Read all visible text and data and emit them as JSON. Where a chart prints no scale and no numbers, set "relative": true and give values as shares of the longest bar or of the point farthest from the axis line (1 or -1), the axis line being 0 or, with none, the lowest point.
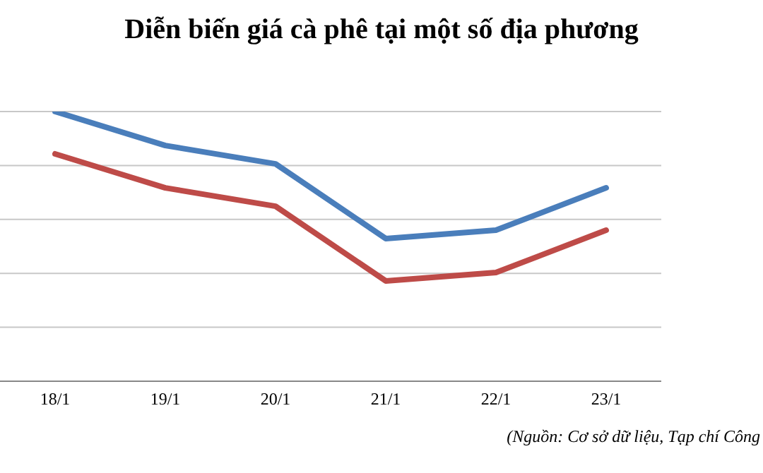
{
  "chart_data": {
    "type": "line",
    "title": "Diễn biến giá cà phê tại một số địa phương",
    "relative": true,
    "categories": [
      "18/1",
      "19/1",
      "20/1",
      "21/1",
      "22/1",
      "23/1"
    ],
    "series": [
      {
        "color": "#4a7ebb",
        "values": [
          1,
          0.874,
          0.806,
          0.529,
          0.56,
          0.717
        ]
      },
      {
        "color": "#be4b48",
        "values": [
          0.843,
          0.717,
          0.649,
          0.372,
          0.403,
          0.56
        ]
      }
    ],
    "grid": "y",
    "marker": "none",
    "line_style": "solid",
    "annotations": [
      "(Nguồn: Cơ sở dữ liệu, Tạp chí Công"
    ]
  }
}
